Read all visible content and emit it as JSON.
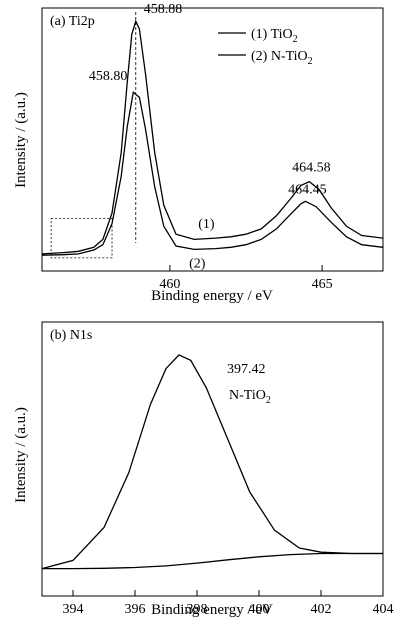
{
  "chart_data": [
    {
      "type": "line",
      "panel_label": "(a) Ti2p",
      "xlabel": "Binding energy / eV",
      "ylabel": "Intensity / (a.u.)",
      "xlim": [
        455.8,
        467.0
      ],
      "ylim": [
        0,
        1.0
      ],
      "x_ticks": [
        460,
        465
      ],
      "y_ticks_shown": false,
      "grid": false,
      "legend_position": "top-right",
      "legend": [
        {
          "text": "(1) TiO",
          "sub": "2"
        },
        {
          "text": "(2) N-TiO",
          "sub": "2"
        }
      ],
      "series": [
        {
          "name": "(1) TiO2",
          "label": "(1)",
          "points": [
            [
              455.8,
              0.065
            ],
            [
              456.5,
              0.07
            ],
            [
              457.0,
              0.075
            ],
            [
              457.5,
              0.09
            ],
            [
              457.8,
              0.12
            ],
            [
              458.1,
              0.22
            ],
            [
              458.4,
              0.45
            ],
            [
              458.6,
              0.72
            ],
            [
              458.75,
              0.9
            ],
            [
              458.88,
              0.95
            ],
            [
              459.0,
              0.92
            ],
            [
              459.2,
              0.75
            ],
            [
              459.5,
              0.45
            ],
            [
              459.8,
              0.25
            ],
            [
              460.2,
              0.14
            ],
            [
              460.8,
              0.12
            ],
            [
              461.5,
              0.125
            ],
            [
              462.0,
              0.13
            ],
            [
              462.5,
              0.14
            ],
            [
              463.0,
              0.16
            ],
            [
              463.5,
              0.21
            ],
            [
              464.0,
              0.28
            ],
            [
              464.3,
              0.325
            ],
            [
              464.58,
              0.34
            ],
            [
              464.9,
              0.31
            ],
            [
              465.3,
              0.24
            ],
            [
              465.8,
              0.17
            ],
            [
              466.3,
              0.135
            ],
            [
              467.0,
              0.125
            ]
          ]
        },
        {
          "name": "(2) N-TiO2",
          "label": "(2)",
          "points": [
            [
              455.8,
              0.06
            ],
            [
              456.5,
              0.062
            ],
            [
              457.0,
              0.065
            ],
            [
              457.5,
              0.08
            ],
            [
              457.8,
              0.1
            ],
            [
              458.1,
              0.18
            ],
            [
              458.4,
              0.36
            ],
            [
              458.6,
              0.55
            ],
            [
              458.8,
              0.68
            ],
            [
              459.0,
              0.66
            ],
            [
              459.2,
              0.54
            ],
            [
              459.5,
              0.32
            ],
            [
              459.8,
              0.17
            ],
            [
              460.2,
              0.095
            ],
            [
              460.8,
              0.082
            ],
            [
              461.5,
              0.085
            ],
            [
              462.0,
              0.09
            ],
            [
              462.5,
              0.1
            ],
            [
              463.0,
              0.12
            ],
            [
              463.5,
              0.16
            ],
            [
              464.0,
              0.22
            ],
            [
              464.3,
              0.255
            ],
            [
              464.45,
              0.265
            ],
            [
              464.8,
              0.245
            ],
            [
              465.3,
              0.185
            ],
            [
              465.8,
              0.13
            ],
            [
              466.3,
              0.1
            ],
            [
              467.0,
              0.09
            ]
          ]
        }
      ],
      "annotations": [
        {
          "text": "458.88",
          "x": 458.88,
          "y": 0.95
        },
        {
          "text": "458.80",
          "x": 458.8,
          "y": 0.68
        },
        {
          "text": "464.58",
          "x": 464.58,
          "y": 0.34
        },
        {
          "text": "464.45",
          "x": 464.45,
          "y": 0.265
        }
      ],
      "reference_line": {
        "x": 458.88,
        "style": "dashed"
      },
      "highlight_box": {
        "x_range": [
          456.1,
          458.1
        ],
        "y_range": [
          0.05,
          0.2
        ],
        "style": "dotted"
      }
    },
    {
      "type": "line",
      "panel_label": "(b) N1s",
      "xlabel": "Binding energy / eV",
      "ylabel": "Intensity / (a.u.)",
      "xlim": [
        393,
        404
      ],
      "ylim": [
        0,
        1.0
      ],
      "x_ticks": [
        394,
        396,
        398,
        400,
        402,
        404
      ],
      "y_ticks_shown": false,
      "grid": false,
      "series": [
        {
          "name": "N-TiO2",
          "points": [
            [
              393,
              0.1
            ],
            [
              394,
              0.13
            ],
            [
              395,
              0.25
            ],
            [
              395.8,
              0.45
            ],
            [
              396.5,
              0.7
            ],
            [
              397.0,
              0.83
            ],
            [
              397.42,
              0.88
            ],
            [
              397.8,
              0.86
            ],
            [
              398.3,
              0.76
            ],
            [
              399.0,
              0.57
            ],
            [
              399.7,
              0.38
            ],
            [
              400.5,
              0.24
            ],
            [
              401.3,
              0.175
            ],
            [
              402.0,
              0.16
            ],
            [
              403.0,
              0.155
            ],
            [
              404,
              0.155
            ]
          ]
        },
        {
          "name": "baseline",
          "points": [
            [
              393,
              0.1
            ],
            [
              394,
              0.1
            ],
            [
              395,
              0.101
            ],
            [
              396,
              0.104
            ],
            [
              397,
              0.11
            ],
            [
              398,
              0.12
            ],
            [
              399,
              0.132
            ],
            [
              400,
              0.143
            ],
            [
              401,
              0.151
            ],
            [
              402,
              0.155
            ],
            [
              403,
              0.155
            ],
            [
              404,
              0.155
            ]
          ]
        }
      ],
      "annotations": [
        {
          "text": "397.42",
          "x": 397.42,
          "y": 0.88
        },
        {
          "text": "N-TiO",
          "sub": "2"
        }
      ]
    }
  ]
}
